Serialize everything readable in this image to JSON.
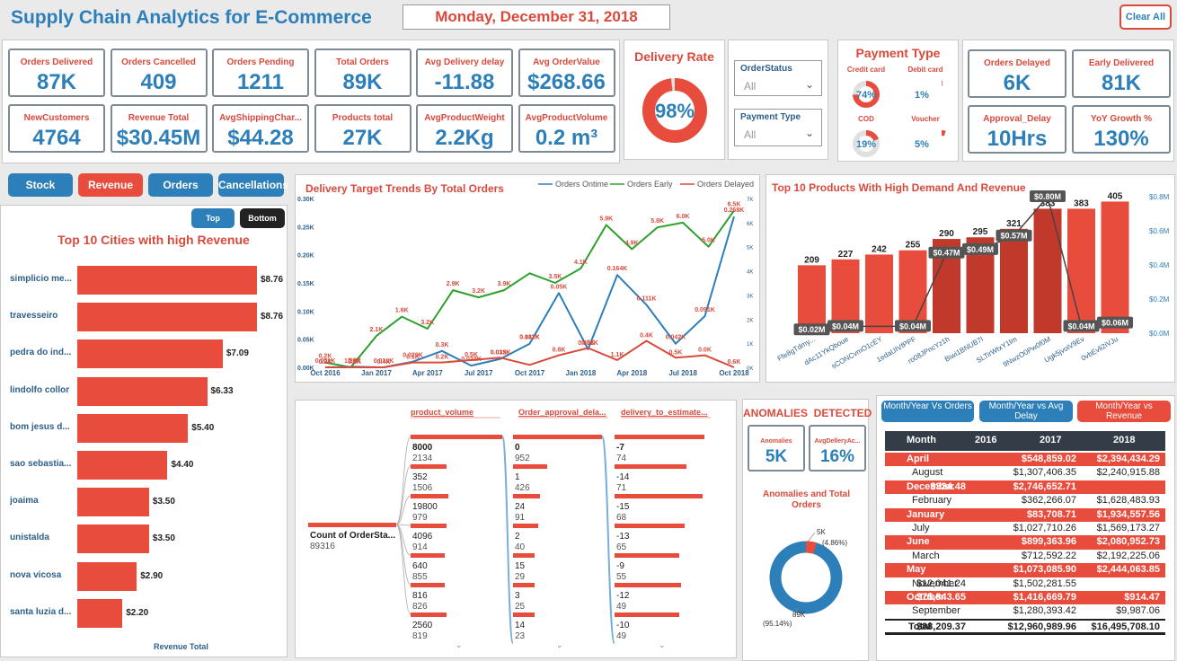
{
  "header": {
    "title": "Supply Chain Analytics for E-Commerce",
    "date": "Monday, December 31, 2018",
    "clear_all": "Clear All"
  },
  "kpis": [
    {
      "label": "Orders Delivered",
      "value": "87K"
    },
    {
      "label": "Orders Cancelled",
      "value": "409"
    },
    {
      "label": "Orders Pending",
      "value": "1211"
    },
    {
      "label": "Total Orders",
      "value": "89K"
    },
    {
      "label": "Avg Delivery delay",
      "value": "-11.88"
    },
    {
      "label": "Avg OrderValue",
      "value": "$268.66"
    },
    {
      "label": "NewCustomers",
      "value": "4764"
    },
    {
      "label": "Revenue Total",
      "value": "$30.45M"
    },
    {
      "label": "AvgShippingChar...",
      "value": "$44.28"
    },
    {
      "label": "Products total",
      "value": "27K"
    },
    {
      "label": "AvgProductWeight",
      "value": "2.2Kg"
    },
    {
      "label": "AvgProductVolume",
      "value": "0.2 m³"
    }
  ],
  "delivery_rate": {
    "title": "Delivery Rate",
    "value": "98%",
    "percent": 98
  },
  "filters": {
    "order_status": {
      "label": "OrderStatus",
      "value": "All"
    },
    "payment_type": {
      "label": "Payment Type",
      "value": "All"
    }
  },
  "payment_type": {
    "title": "Payment Type",
    "items": [
      {
        "label": "Credit card",
        "value": "74%",
        "percent": 74
      },
      {
        "label": "Debit card",
        "value": "1%",
        "percent": 1
      },
      {
        "label": "COD",
        "value": "19%",
        "percent": 19
      },
      {
        "label": "Voucher",
        "value": "5%",
        "percent": 5
      }
    ]
  },
  "kpis_right": [
    {
      "label": "Orders Delayed",
      "value": "6K"
    },
    {
      "label": "Early Delivered",
      "value": "81K"
    },
    {
      "label": "Approval_Delay",
      "value": "10Hrs"
    },
    {
      "label": "YoY Growth %",
      "value": "130%"
    }
  ],
  "nav_buttons": [
    "Stock",
    "Revenue",
    "Orders",
    "Cancellations"
  ],
  "cities": {
    "toggle": [
      "Top",
      "Bottom"
    ],
    "title": "Top 10 Cities with high Revenue",
    "axis_label": "Revenue Total",
    "items": [
      {
        "name": "simplicio me...",
        "value": "$8.76",
        "num": 8.76
      },
      {
        "name": "travesseiro",
        "value": "$8.76",
        "num": 8.76
      },
      {
        "name": "pedra do ind...",
        "value": "$7.09",
        "num": 7.09
      },
      {
        "name": "lindolfo collor",
        "value": "$6.33",
        "num": 6.33
      },
      {
        "name": "bom jesus d...",
        "value": "$5.40",
        "num": 5.4
      },
      {
        "name": "sao sebastia...",
        "value": "$4.40",
        "num": 4.4
      },
      {
        "name": "joaima",
        "value": "$3.50",
        "num": 3.5
      },
      {
        "name": "unistalda",
        "value": "$3.50",
        "num": 3.5
      },
      {
        "name": "nova vicosa",
        "value": "$2.90",
        "num": 2.9
      },
      {
        "name": "santa luzia d...",
        "value": "$2.20",
        "num": 2.2
      }
    ]
  },
  "chart_data": [
    {
      "type": "line",
      "title": "Delivery Target Trends By Total Orders",
      "legend": [
        "Orders Ontime",
        "Orders Early",
        "Orders Delayed"
      ],
      "x_ticks": [
        "Oct 2016",
        "Jan 2017",
        "Apr 2017",
        "Jul 2017",
        "Oct 2017",
        "Jan 2018",
        "Apr 2018",
        "Jul 2018",
        "Oct 2018"
      ],
      "y_left_ticks": [
        "0.00K",
        "0.05K",
        "0.10K",
        "0.15K",
        "0.20K",
        "0.25K",
        "0.30K"
      ],
      "y_right_ticks": [
        "0K",
        "1K",
        "2K",
        "3K",
        "4K",
        "5K",
        "6K",
        "7K"
      ],
      "ontime": [
        0,
        0.001,
        0.0,
        0.01,
        0.029,
        0.003,
        0.015,
        0.042,
        0.132,
        0.032,
        0.164,
        0.111,
        0.042,
        0.091,
        0.268
      ],
      "early": [
        0.2,
        0.001,
        1.3,
        2.1,
        1.6,
        3.2,
        2.9,
        3.2,
        3.9,
        3.5,
        4.1,
        5.9,
        4.9,
        5.8,
        6.0,
        5.0,
        6.5
      ],
      "delayed": [
        0,
        0,
        0,
        0.2,
        0.2,
        0.3,
        0.4,
        0.1,
        0.5,
        0.8,
        0.3,
        1.1,
        0.4,
        0.5,
        0
      ],
      "labels": {
        "early": [
          "0.2K",
          "1.3K",
          "2.1K",
          "1.6K",
          "3.2K",
          "2.9K",
          "3.2K",
          "3.9K",
          "3.5K",
          "4.1K",
          "5.9K",
          "4.9K",
          "5.8K",
          "6.0K",
          "5.0K",
          "6.5K"
        ],
        "ontime": [
          "0.001K",
          "0.0K",
          "0.010K",
          "0.029K",
          "0.3K",
          "0.023K",
          "0.015K",
          "0.042K",
          "0.132K",
          "0.05K",
          "0.051K",
          "0.164K",
          "0.111K",
          "0.042K",
          "0.091K",
          "0.268K"
        ],
        "delayed": [
          "0.2K",
          "0.2K",
          "0.4K",
          "0.1K",
          "0.2K",
          "0.5K",
          "0.032K",
          "0.8K",
          "0.3K",
          "1.1K",
          "0.4K",
          "0.5K",
          "0.0K",
          "0.6K"
        ]
      }
    },
    {
      "type": "bar",
      "title": "Top 10 Products With High Demand And Revenue",
      "categories": [
        "Ffe8gTdmy...",
        "dAc11YkQboue",
        "sCONCvmO1cEY",
        "1edaUIVfPPF",
        "ro08JPncYz1h",
        "Biwi1BNUB7I",
        "SLTirWtxY1Im",
        "9NwzO0Pw0f0M",
        "Ugk5jvoiV9Ev",
        "0vbEvli2iVJu"
      ],
      "values": [
        209,
        227,
        242,
        255,
        290,
        295,
        321,
        383,
        383,
        405
      ],
      "revenue_labels": [
        "$0.02M",
        "$0.04M",
        "$0.04M",
        "$0.47M",
        "$0.49M",
        "$0.57M",
        "$0.80M",
        "$0.04M",
        "$0.06M"
      ],
      "y_right_ticks": [
        "$0.0M",
        "$0.2M",
        "$0.4M",
        "$0.6M",
        "$0.8M"
      ]
    }
  ],
  "decomp": {
    "headers": [
      "product_volume",
      "Order_approval_dela...",
      "delivery_to_estimate..."
    ],
    "root_label": "Count of OrderSta...",
    "root_value": "89316",
    "col1": [
      [
        "8000",
        "2134"
      ],
      [
        "352",
        "1506"
      ],
      [
        "19800",
        "979"
      ],
      [
        "4096",
        "914"
      ],
      [
        "640",
        "855"
      ],
      [
        "816",
        "826"
      ],
      [
        "2560",
        "819"
      ]
    ],
    "col2": [
      [
        "0",
        "952"
      ],
      [
        "1",
        "426"
      ],
      [
        "24",
        "91"
      ],
      [
        "2",
        "40"
      ],
      [
        "15",
        "29"
      ],
      [
        "3",
        "25"
      ],
      [
        "14",
        "23"
      ]
    ],
    "col3": [
      [
        "-7",
        "74"
      ],
      [
        "-14",
        "71"
      ],
      [
        "-15",
        "68"
      ],
      [
        "-13",
        "65"
      ],
      [
        "-9",
        "55"
      ],
      [
        "-12",
        "49"
      ],
      [
        "-10",
        "49"
      ]
    ]
  },
  "anomalies": {
    "title": "ANOMALIES  DETECTED",
    "kpi1": {
      "label": "Anomalies",
      "value": "5K"
    },
    "kpi2": {
      "label": "AvgDelleryAc...",
      "value": "16%"
    },
    "donut_title": "Anomalies and Total Orders",
    "slice_small": "5K",
    "slice_small_pct": "(4.86%)",
    "slice_big": "89K",
    "slice_big_pct": "(95.14%)",
    "percent_small": 4.86
  },
  "table": {
    "tabs": [
      "Month/Year Vs Orders",
      "Month/Year vs Avg Delay",
      "Month/Year vs Revenue"
    ],
    "headers": [
      "Month",
      "2016",
      "2017",
      "2018"
    ],
    "rows": [
      {
        "m": "April",
        "a": "",
        "b": "$548,859.02",
        "c": "$2,394,434.29",
        "hl": true
      },
      {
        "m": "August",
        "a": "",
        "b": "$1,307,406.35",
        "c": "$2,240,915.88",
        "hl": false
      },
      {
        "m": "December",
        "a": "$324.48",
        "b": "$2,746,652.71",
        "c": "",
        "hl": true
      },
      {
        "m": "February",
        "a": "",
        "b": "$362,266.07",
        "c": "$1,628,483.93",
        "hl": false
      },
      {
        "m": "January",
        "a": "",
        "b": "$83,708.71",
        "c": "$1,934,557.56",
        "hl": true
      },
      {
        "m": "July",
        "a": "",
        "b": "$1,027,710.26",
        "c": "$1,569,173.27",
        "hl": false
      },
      {
        "m": "June",
        "a": "",
        "b": "$899,363.96",
        "c": "$2,080,952.73",
        "hl": true
      },
      {
        "m": "March",
        "a": "",
        "b": "$712,592.22",
        "c": "$2,192,225.06",
        "hl": false
      },
      {
        "m": "May",
        "a": "",
        "b": "$1,073,085.90",
        "c": "$2,444,063.85",
        "hl": true
      },
      {
        "m": "November",
        "a": "$12,041.24",
        "b": "$1,502,281.55",
        "c": "",
        "hl": false
      },
      {
        "m": "October",
        "a": "$75,843.65",
        "b": "$1,416,669.79",
        "c": "$914.47",
        "hl": true
      },
      {
        "m": "September",
        "a": "",
        "b": "$1,280,393.42",
        "c": "$9,987.06",
        "hl": false
      }
    ],
    "total": {
      "m": "Total",
      "a": "$88,209.37",
      "b": "$12,960,989.96",
      "c": "$16,495,708.10"
    }
  }
}
